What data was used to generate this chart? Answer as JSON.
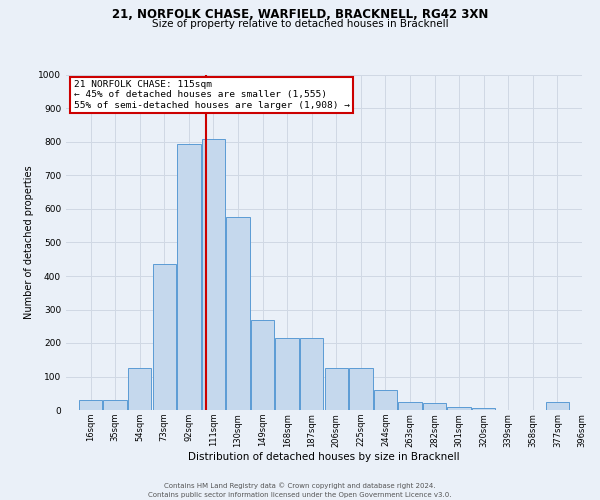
{
  "title1": "21, NORFOLK CHASE, WARFIELD, BRACKNELL, RG42 3XN",
  "title2": "Size of property relative to detached houses in Bracknell",
  "xlabel": "Distribution of detached houses by size in Bracknell",
  "ylabel": "Number of detached properties",
  "footnote1": "Contains HM Land Registry data © Crown copyright and database right 2024.",
  "footnote2": "Contains public sector information licensed under the Open Government Licence v3.0.",
  "bin_labels": [
    "16sqm",
    "35sqm",
    "54sqm",
    "73sqm",
    "92sqm",
    "111sqm",
    "130sqm",
    "149sqm",
    "168sqm",
    "187sqm",
    "206sqm",
    "225sqm",
    "244sqm",
    "263sqm",
    "282sqm",
    "301sqm",
    "320sqm",
    "339sqm",
    "358sqm",
    "377sqm",
    "396sqm"
  ],
  "bin_edges": [
    16,
    35,
    54,
    73,
    92,
    111,
    130,
    149,
    168,
    187,
    206,
    225,
    244,
    263,
    282,
    301,
    320,
    339,
    358,
    377,
    396
  ],
  "bar_heights": [
    30,
    30,
    125,
    435,
    795,
    810,
    575,
    270,
    215,
    215,
    125,
    125,
    60,
    25,
    20,
    10,
    5,
    0,
    0,
    25,
    0
  ],
  "bar_color": "#c5d8ed",
  "bar_edgecolor": "#5b9bd5",
  "grid_color": "#d0d8e4",
  "property_line_x": 115,
  "annotation_title": "21 NORFOLK CHASE: 115sqm",
  "annotation_line1": "← 45% of detached houses are smaller (1,555)",
  "annotation_line2": "55% of semi-detached houses are larger (1,908) →",
  "annotation_box_color": "#ffffff",
  "annotation_box_edgecolor": "#cc0000",
  "vline_color": "#cc0000",
  "ylim": [
    0,
    1000
  ],
  "yticks": [
    0,
    100,
    200,
    300,
    400,
    500,
    600,
    700,
    800,
    900,
    1000
  ],
  "background_color": "#eaf0f8",
  "title1_fontsize": 8.5,
  "title2_fontsize": 7.5,
  "xlabel_fontsize": 7.5,
  "ylabel_fontsize": 7.0,
  "tick_fontsize": 6.0,
  "annotation_fontsize": 6.8,
  "footnote_fontsize": 5.0
}
